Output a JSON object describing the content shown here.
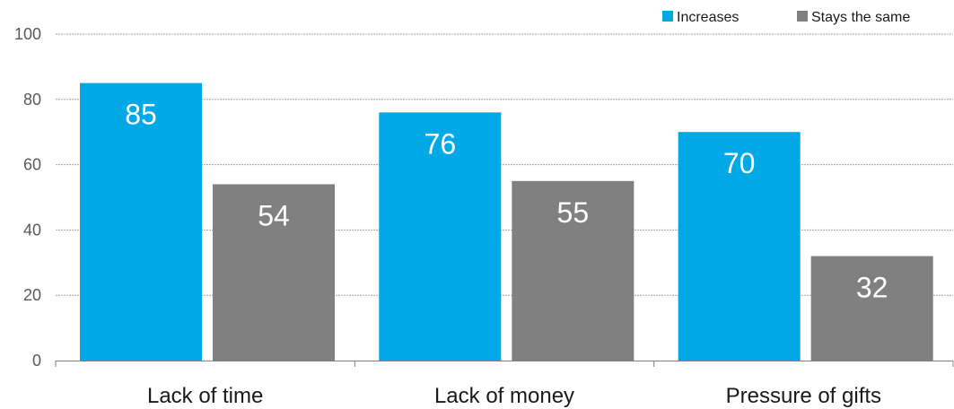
{
  "chart_data": {
    "type": "bar",
    "categories": [
      "Lack of time",
      "Lack of money",
      "Pressure of gifts"
    ],
    "series": [
      {
        "name": "Increases",
        "values": [
          85,
          76,
          70
        ],
        "color": "#00a8e6"
      },
      {
        "name": "Stays the same",
        "values": [
          54,
          55,
          32
        ],
        "color": "#808080"
      }
    ],
    "ylim": [
      0,
      100
    ],
    "yticks": [
      0,
      20,
      40,
      60,
      80,
      100
    ],
    "grid": "horizontal-dashed",
    "legend_position": "top-right",
    "data_labels": true
  }
}
